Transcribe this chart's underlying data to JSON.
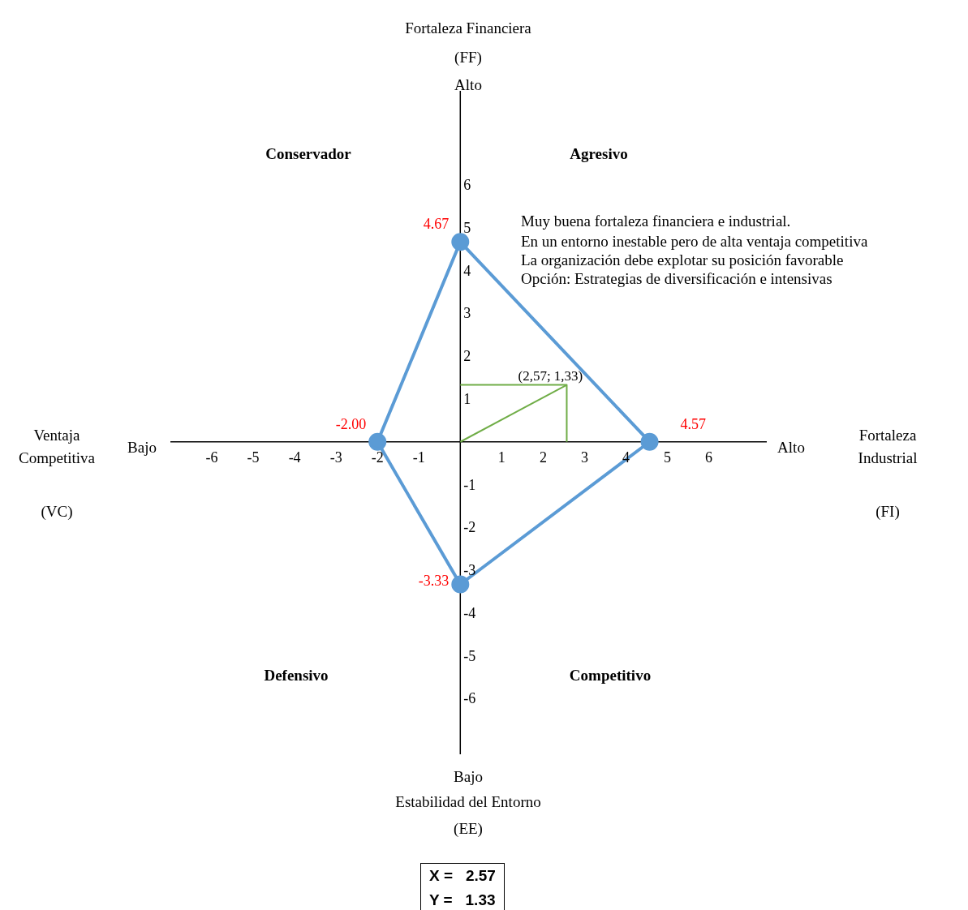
{
  "chart_data": {
    "type": "line",
    "xlim": [
      -7,
      7.4
    ],
    "ylim": [
      -7.3,
      8.2
    ],
    "xticks": [
      -6,
      -5,
      -4,
      -3,
      -2,
      -1,
      1,
      2,
      3,
      4,
      5,
      6
    ],
    "yticks": [
      -6,
      -5,
      -4,
      -3,
      -2,
      -1,
      1,
      2,
      3,
      4,
      5,
      6
    ],
    "series": [
      {
        "type": "line",
        "color": "#5b9bd5",
        "marker": "circle",
        "x": [
          -2,
          0,
          4.57,
          0
        ],
        "values": [
          0,
          4.67,
          0,
          -3.33
        ]
      },
      {
        "type": "line",
        "color": "#5b9bd5",
        "marker": "none",
        "x": [
          0,
          -2
        ],
        "values": [
          -3.33,
          0
        ]
      },
      {
        "color": "#70ad47",
        "marker": "none",
        "x": [
          0,
          2.57
        ],
        "values": [
          0,
          1.33
        ]
      },
      {
        "color": "#70ad47",
        "marker": "none",
        "x": [
          0,
          2.57,
          2.57
        ],
        "values": [
          1.33,
          1.33,
          0
        ]
      }
    ],
    "annotations": [
      "Fortaleza Financiera",
      "(FF)",
      "Alto",
      "Conservador",
      "Agresivo",
      "Muy buena fortaleza financiera e industrial.",
      "En un entorno inestable pero de alta ventaja competitiva",
      "La organización debe explotar su posición favorable",
      "Opción: Estrategias de diversificación e intensivas",
      "Ventaja",
      "Competitiva",
      "(VC)",
      "Bajo",
      "Alto",
      "Fortaleza",
      "Industrial",
      "(FI)",
      "Defensivo",
      "Competitivo",
      "Bajo",
      "Estabilidad del Entorno",
      "(EE)",
      "X =   2.57",
      "Y =   1.33",
      {
        "text": "(2,57; 1,33)",
        "x": 2.57,
        "y": 1.33
      },
      {
        "text": "4.67",
        "x": 0,
        "y": 4.67
      },
      {
        "text": "4.57",
        "x": 4.57,
        "y": 0
      },
      {
        "text": "-3.33",
        "x": 0,
        "y": -3.33
      },
      {
        "text": "-2.00",
        "x": -2,
        "y": 0
      }
    ]
  }
}
